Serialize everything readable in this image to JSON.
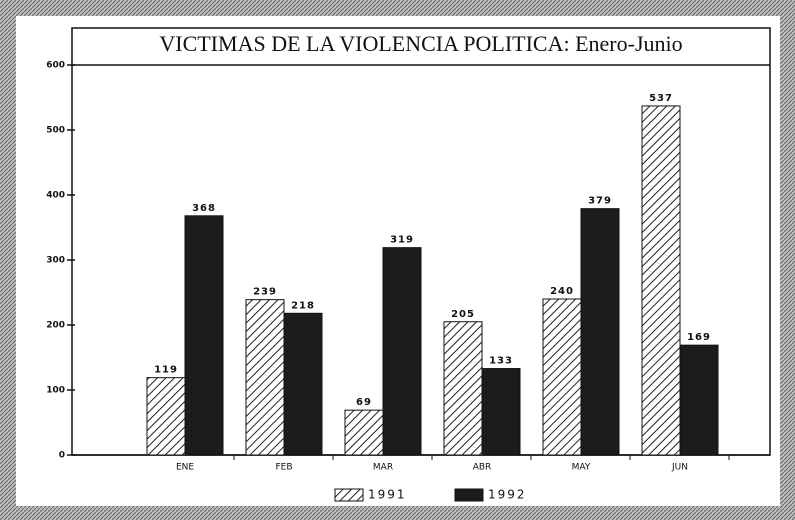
{
  "chart_data": {
    "type": "bar",
    "title": "VICTIMAS DE LA VIOLENCIA POLITICA: Enero-Junio",
    "categories": [
      "ENE",
      "FEB",
      "MAR",
      "ABR",
      "MAY",
      "JUN"
    ],
    "series": [
      {
        "name": "1991",
        "color": "#ffffff",
        "pattern": "hatch",
        "values": [
          119,
          239,
          69,
          205,
          240,
          537
        ]
      },
      {
        "name": "1992",
        "color": "#1c1c1c",
        "values": [
          368,
          218,
          319,
          133,
          379,
          169
        ]
      }
    ],
    "ylim": [
      0,
      600
    ],
    "yticks": [
      0,
      100,
      200,
      300,
      400,
      500,
      600
    ],
    "grid": false,
    "legend": "bottom"
  }
}
